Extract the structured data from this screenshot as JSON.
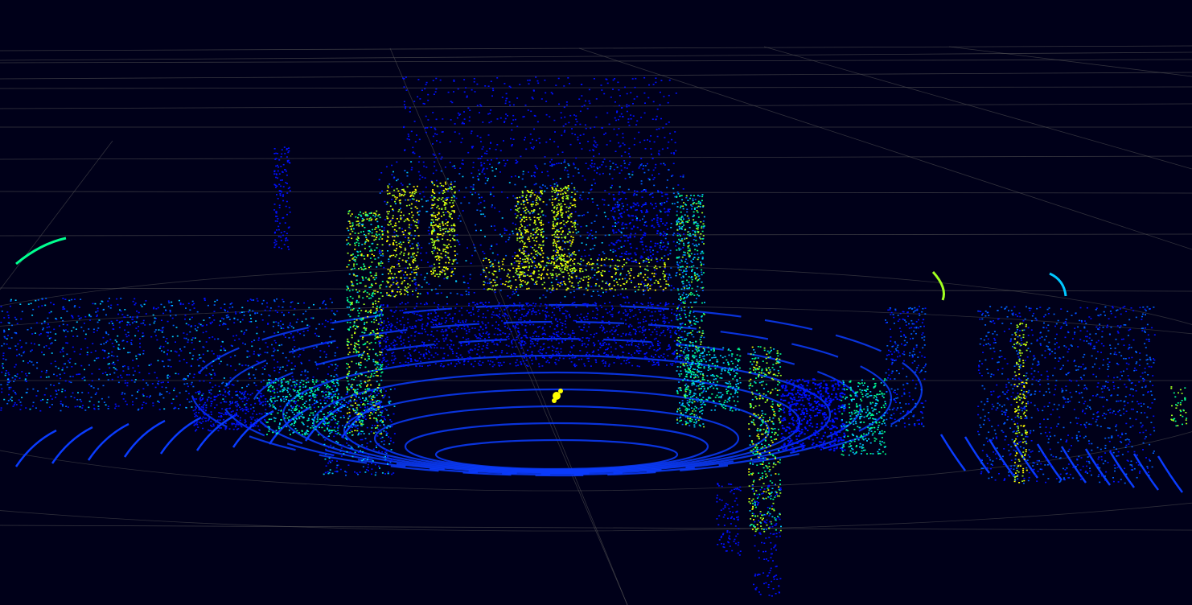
{
  "viewer": {
    "background": "#000019",
    "grid_color": "#5a5a5a",
    "point_colormap": [
      "#0010ff",
      "#0060ff",
      "#00c8ff",
      "#00ff90",
      "#a0ff20",
      "#ffff00",
      "#ff8000",
      "#ff2000"
    ]
  }
}
